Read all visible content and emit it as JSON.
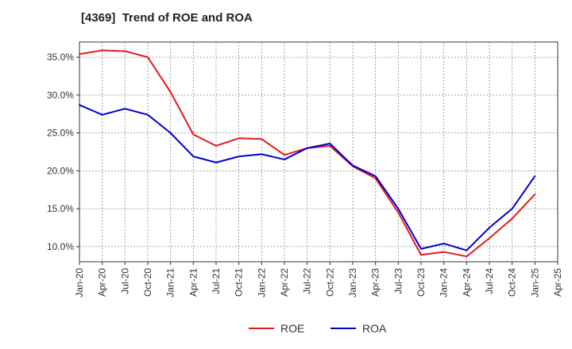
{
  "chart_data": {
    "type": "line",
    "title": "[4369]  Trend of ROE and ROA",
    "xlabel": "",
    "ylabel": "",
    "x": [
      "Jan-20",
      "Apr-20",
      "Jul-20",
      "Oct-20",
      "Jan-21",
      "Apr-21",
      "Jul-21",
      "Oct-21",
      "Jan-22",
      "Apr-22",
      "Jul-22",
      "Oct-22",
      "Jan-23",
      "Apr-23",
      "Jul-23",
      "Oct-23",
      "Jan-24",
      "Apr-24",
      "Jul-24",
      "Oct-24",
      "Jan-25"
    ],
    "x_ticks": [
      "Jan-20",
      "Apr-20",
      "Jul-20",
      "Oct-20",
      "Jan-21",
      "Apr-21",
      "Jul-21",
      "Oct-21",
      "Jan-22",
      "Apr-22",
      "Jul-22",
      "Oct-22",
      "Jan-23",
      "Apr-23",
      "Jul-23",
      "Oct-23",
      "Jan-24",
      "Apr-24",
      "Jul-24",
      "Oct-24",
      "Jan-25",
      "Apr-25"
    ],
    "ylim": [
      8.0,
      37.0
    ],
    "y_ticks": [
      10,
      15,
      20,
      25,
      30,
      35
    ],
    "y_tick_labels": [
      "10.0%",
      "15.0%",
      "20.0%",
      "25.0%",
      "30.0%",
      "35.0%"
    ],
    "grid": true,
    "legend_position": "bottom-center",
    "series": [
      {
        "name": "ROE",
        "color": "#e31a1c",
        "values": [
          35.4,
          35.9,
          35.8,
          35.0,
          30.4,
          24.8,
          23.3,
          24.3,
          24.2,
          22.1,
          23.0,
          23.3,
          20.6,
          19.0,
          14.5,
          8.9,
          9.3,
          8.7,
          11.1,
          13.7,
          16.9
        ]
      },
      {
        "name": "ROA",
        "color": "#0000cc",
        "values": [
          28.7,
          27.4,
          28.2,
          27.4,
          25.0,
          21.9,
          21.1,
          21.9,
          22.2,
          21.5,
          23.0,
          23.6,
          20.7,
          19.3,
          15.0,
          9.7,
          10.4,
          9.5,
          12.5,
          15.0,
          19.3
        ]
      }
    ]
  }
}
